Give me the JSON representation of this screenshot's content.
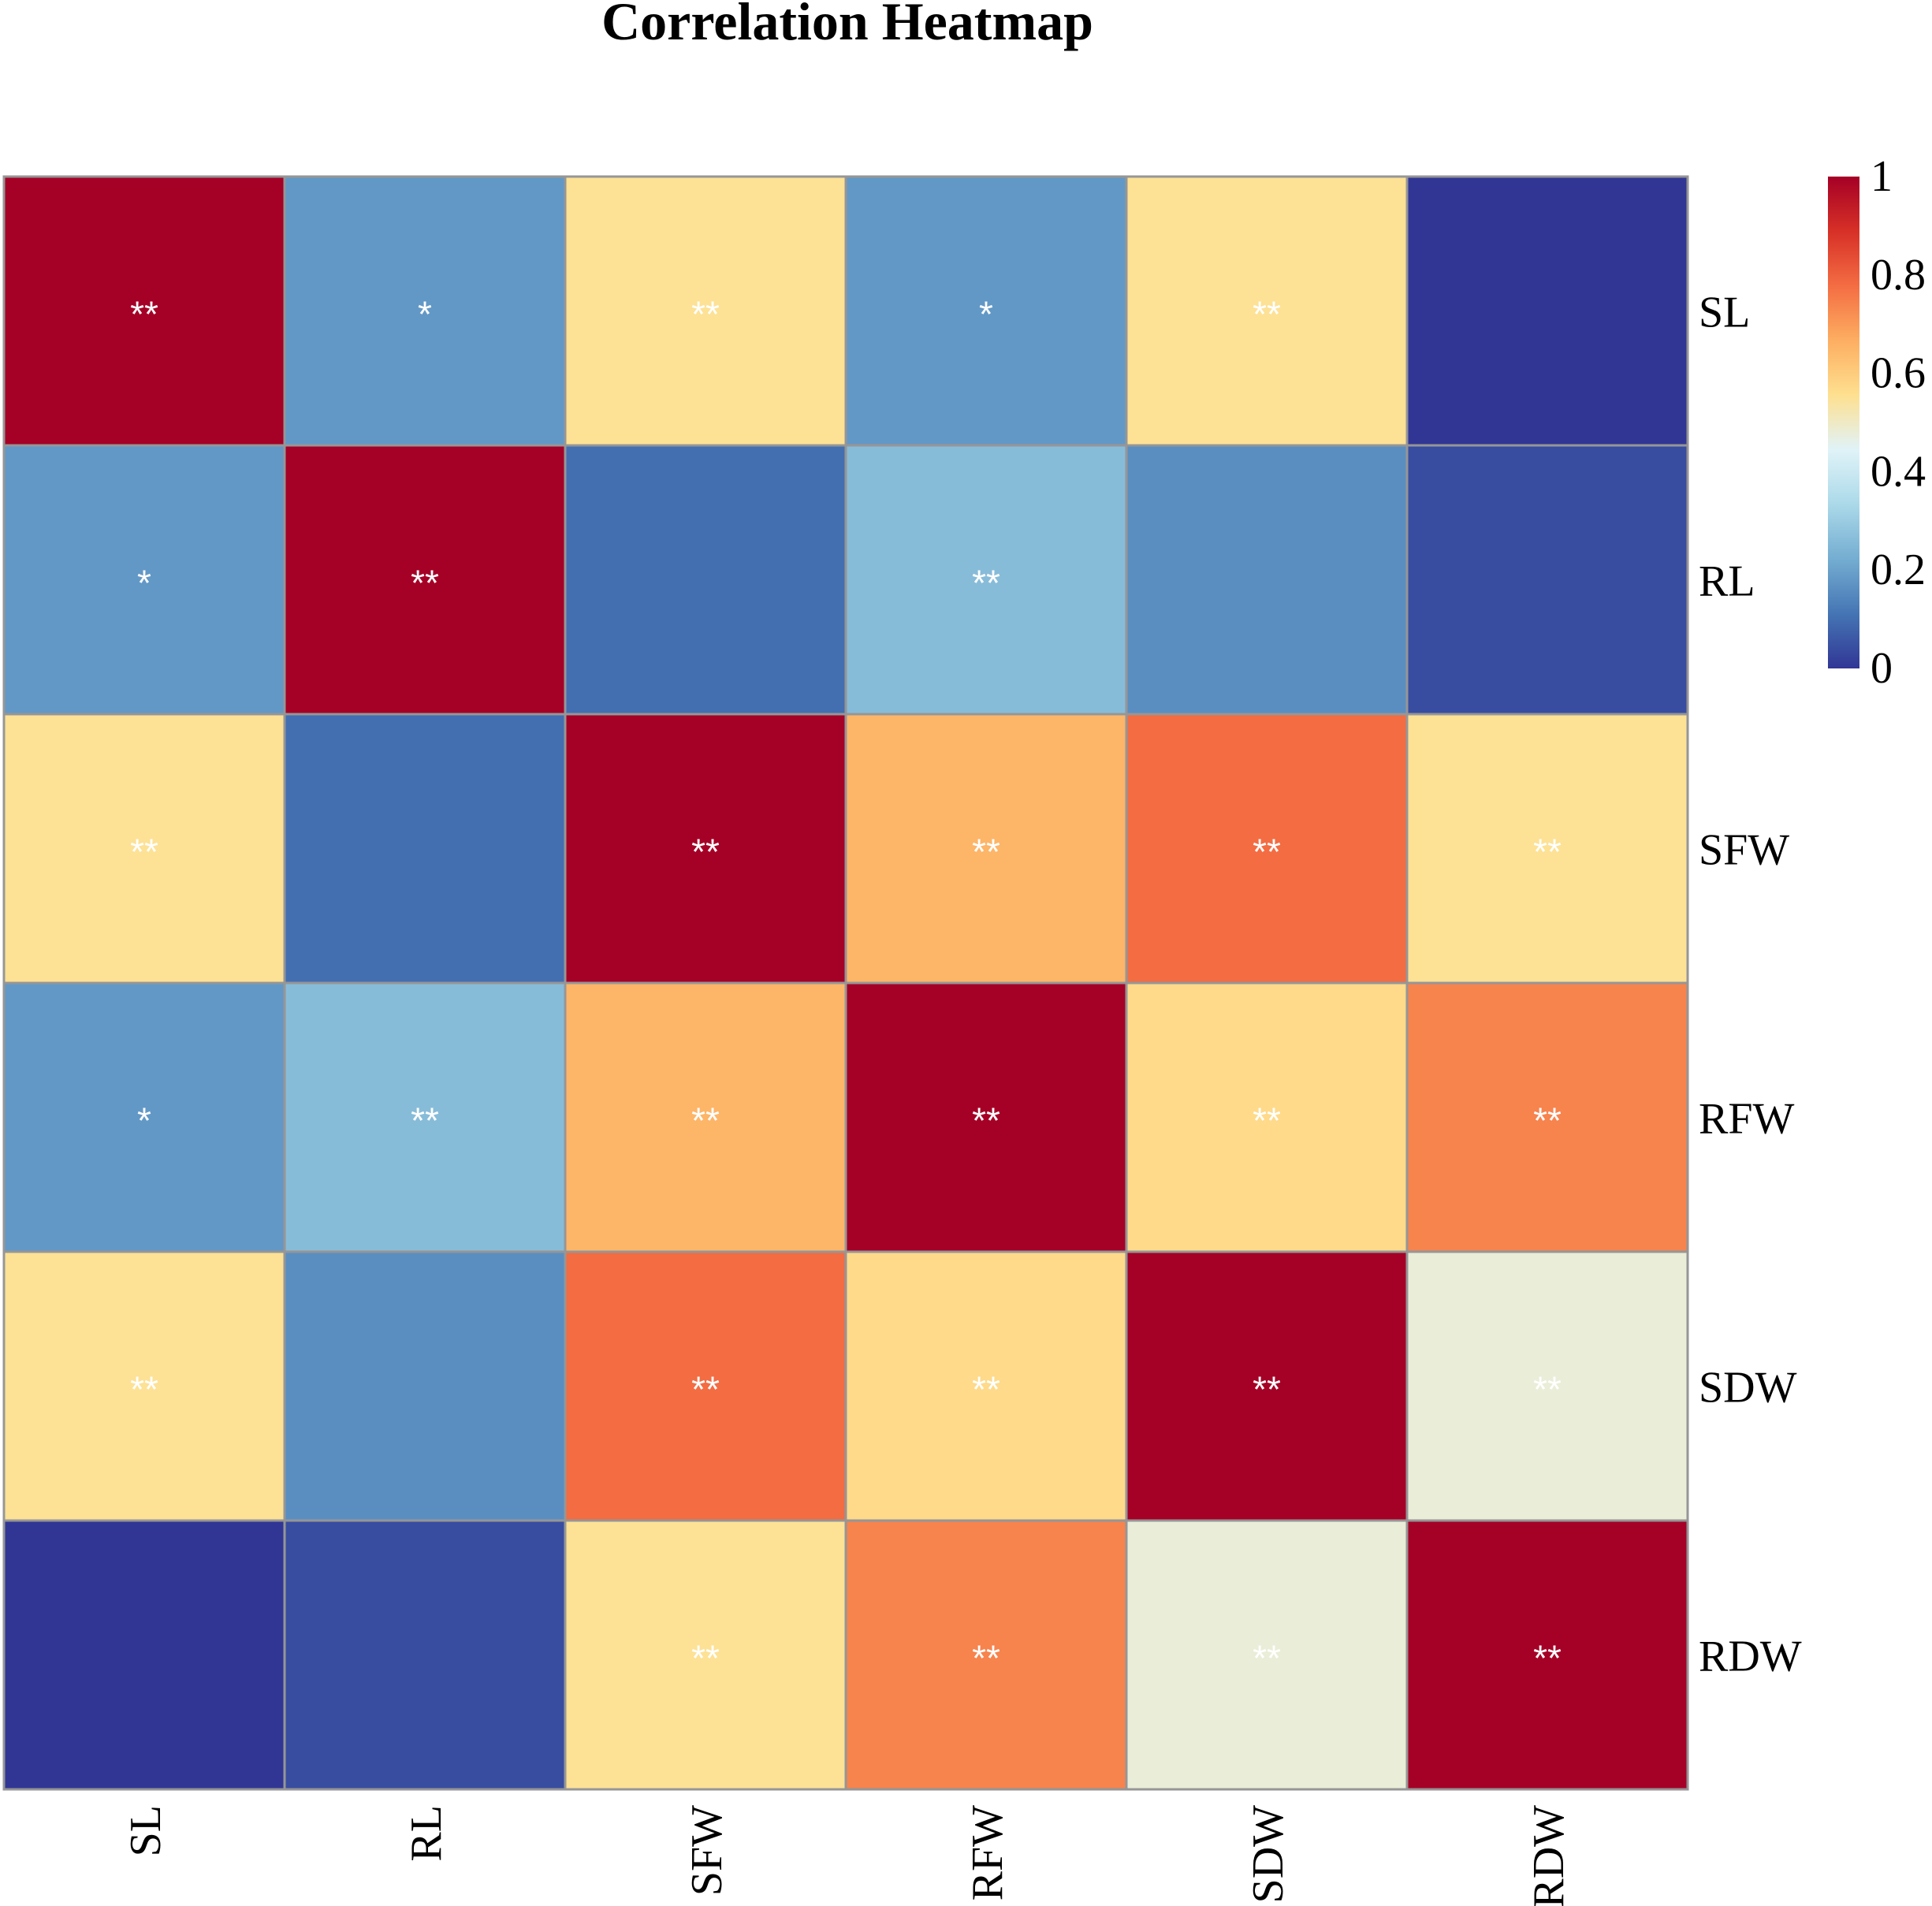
{
  "chart_data": {
    "type": "heatmap",
    "title": "Correlation Heatmap",
    "rows": [
      "SL",
      "RL",
      "SFW",
      "RFW",
      "SDW",
      "RDW"
    ],
    "columns": [
      "SL",
      "RL",
      "SFW",
      "RFW",
      "SDW",
      "RDW"
    ],
    "values": [
      [
        1.0,
        0.18,
        0.55,
        0.18,
        0.55,
        0.0
      ],
      [
        0.18,
        1.0,
        0.1,
        0.26,
        0.16,
        0.04
      ],
      [
        0.55,
        0.1,
        1.0,
        0.65,
        0.78,
        0.55
      ],
      [
        0.18,
        0.26,
        0.65,
        1.0,
        0.57,
        0.74
      ],
      [
        0.55,
        0.16,
        0.78,
        0.57,
        1.0,
        0.48
      ],
      [
        0.0,
        0.04,
        0.55,
        0.74,
        0.48,
        1.0
      ]
    ],
    "significance": [
      [
        "**",
        "*",
        "**",
        "*",
        "**",
        ""
      ],
      [
        "*",
        "**",
        "",
        "**",
        "",
        ""
      ],
      [
        "**",
        "",
        "**",
        "**",
        "**",
        "**"
      ],
      [
        "*",
        "**",
        "**",
        "**",
        "**",
        "**"
      ],
      [
        "**",
        "",
        "**",
        "**",
        "**",
        "**"
      ],
      [
        "",
        "",
        "**",
        "**",
        "**",
        "**"
      ]
    ],
    "colorbar": {
      "min": 0,
      "max": 1,
      "ticks": [
        0,
        0.2,
        0.4,
        0.6,
        0.8,
        1
      ],
      "tick_labels": [
        "0",
        "0.2",
        "0.4",
        "0.6",
        "0.8",
        "1"
      ],
      "colors": [
        "#313695",
        "#4575b4",
        "#74add1",
        "#abd9e9",
        "#e0f3f8",
        "#fee090",
        "#fdae61",
        "#f46d43",
        "#d73027",
        "#a50026"
      ]
    },
    "legend_position": "top-right",
    "row_label_position": "right",
    "column_label_orientation": "vertical"
  }
}
